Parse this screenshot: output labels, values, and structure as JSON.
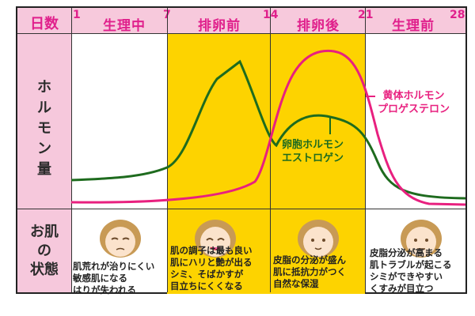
{
  "header": {
    "label": "日数",
    "days": [
      "1",
      "7",
      "14",
      "21",
      "28"
    ],
    "phases": [
      "生理中",
      "排卵前",
      "排卵後",
      "生理前"
    ]
  },
  "rows": {
    "hormone_label": [
      "ホ",
      "ル",
      "モ",
      "ン",
      "量"
    ],
    "state_label": [
      "お肌",
      "の",
      "状態"
    ]
  },
  "curves": {
    "estrogen": {
      "name_lines": [
        "卵胞ホルモン",
        "エストロゲン"
      ],
      "color": "#1e6b1e"
    },
    "progesterone": {
      "name_lines": [
        "黄体ホルモン",
        "プロゲステロン"
      ],
      "color": "#e8207f"
    }
  },
  "skin_states": [
    [
      "肌荒れが治りにくい",
      "敏感肌になる",
      "はりが失われる"
    ],
    [
      "肌の調子は最も良い",
      "肌にハリと艶が出る",
      "シミ、そばかすが",
      "目立ちにくくなる"
    ],
    [
      "皮脂の分泌が盛ん",
      "肌に抵抗力がつく",
      "自然な保湿"
    ],
    [
      "皮脂分泌が高まる",
      "肌トラブルが起こる",
      "シミができやすい",
      "くすみが目立つ"
    ]
  ],
  "colors": {
    "highlight": "#fdd300",
    "pink_band": "#f7c9dc",
    "accent": "#e0208c"
  }
}
